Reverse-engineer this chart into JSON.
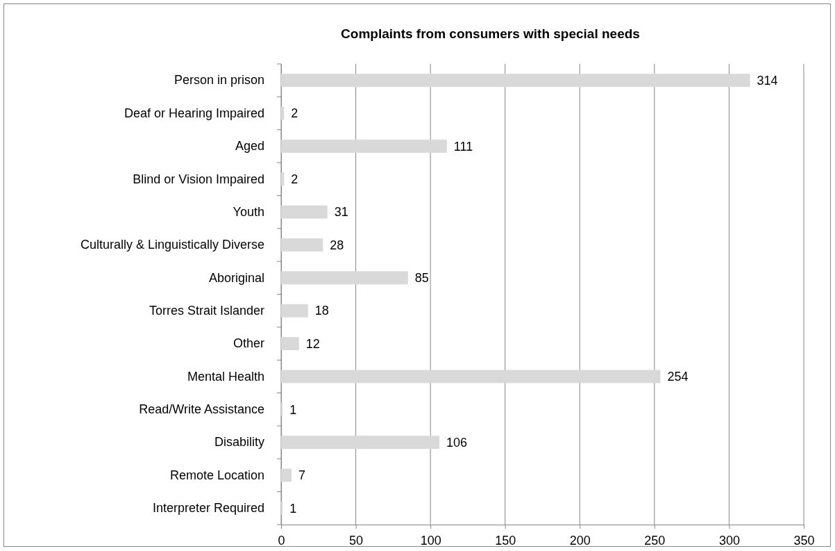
{
  "chart_data": {
    "type": "bar",
    "orientation": "horizontal",
    "title": "Complaints from consumers with special needs",
    "categories": [
      "Person in prison",
      "Deaf or Hearing Impaired",
      "Aged",
      "Blind or Vision Impaired",
      "Youth",
      "Culturally & Linguistically Diverse",
      "Aboriginal",
      "Torres Strait Islander",
      "Other",
      "Mental Health",
      "Read/Write Assistance",
      "Disability",
      "Remote Location",
      "Interpreter Required"
    ],
    "values": [
      314,
      2,
      111,
      2,
      31,
      28,
      85,
      18,
      12,
      254,
      1,
      106,
      7,
      1
    ],
    "color": "#d9d9d9",
    "xlim": [
      0,
      350
    ],
    "xticks": [
      0,
      50,
      100,
      150,
      200,
      250,
      300,
      350
    ],
    "grid": "x",
    "data_labels": true
  }
}
